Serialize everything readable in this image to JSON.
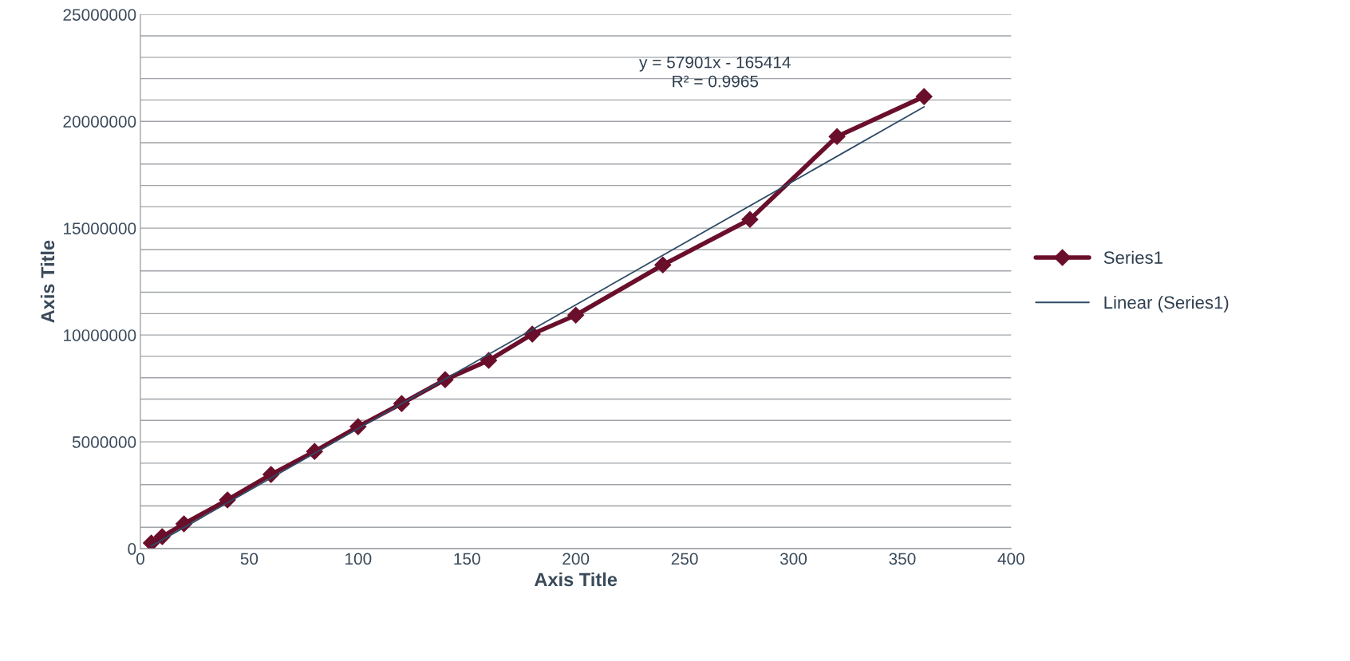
{
  "chart_data": {
    "type": "line",
    "xlabel": "Axis Title",
    "ylabel": "Axis Title",
    "x": [
      5,
      10,
      20,
      40,
      60,
      80,
      100,
      120,
      140,
      160,
      180,
      200,
      240,
      280,
      320,
      360
    ],
    "series": [
      {
        "name": "Series1",
        "color": "#6a0f2b",
        "marker": "diamond",
        "values": [
          260000,
          560000,
          1160000,
          2280000,
          3470000,
          4550000,
          5710000,
          6790000,
          7910000,
          8810000,
          10040000,
          10930000,
          13280000,
          15410000,
          19290000,
          21160000
        ]
      },
      {
        "name": "Linear (Series1)",
        "color": "#2e4a66",
        "marker": "none",
        "x": [
          5,
          360
        ],
        "values": [
          120000,
          20680000
        ]
      }
    ],
    "annotations": [
      "y = 57901x - 165414\nR² = 0.9965"
    ],
    "xlim": [
      0,
      400
    ],
    "xticks": [
      0,
      50,
      100,
      150,
      200,
      250,
      300,
      350,
      400
    ],
    "ylim": [
      0,
      25000000
    ],
    "yticks": [
      0,
      {
        "value": 1000000,
        "label": null
      },
      {
        "value": 2000000,
        "label": null
      },
      {
        "value": 3000000,
        "label": null
      },
      {
        "value": 4000000,
        "label": null
      },
      5000000,
      {
        "value": 6000000,
        "label": null
      },
      {
        "value": 7000000,
        "label": null
      },
      {
        "value": 8000000,
        "label": null
      },
      {
        "value": 9000000,
        "label": null
      },
      10000000,
      {
        "value": 11000000,
        "label": null
      },
      {
        "value": 12000000,
        "label": null
      },
      {
        "value": 13000000,
        "label": null
      },
      {
        "value": 14000000,
        "label": null
      },
      15000000,
      {
        "value": 16000000,
        "label": null
      },
      {
        "value": 17000000,
        "label": null
      },
      {
        "value": 18000000,
        "label": null
      },
      {
        "value": 19000000,
        "label": null
      },
      20000000,
      {
        "value": 21000000,
        "label": null
      },
      {
        "value": 22000000,
        "label": null
      },
      {
        "value": 23000000,
        "label": null
      },
      {
        "value": 24000000,
        "label": null
      },
      25000000
    ],
    "grid": "y",
    "legend": "right"
  }
}
